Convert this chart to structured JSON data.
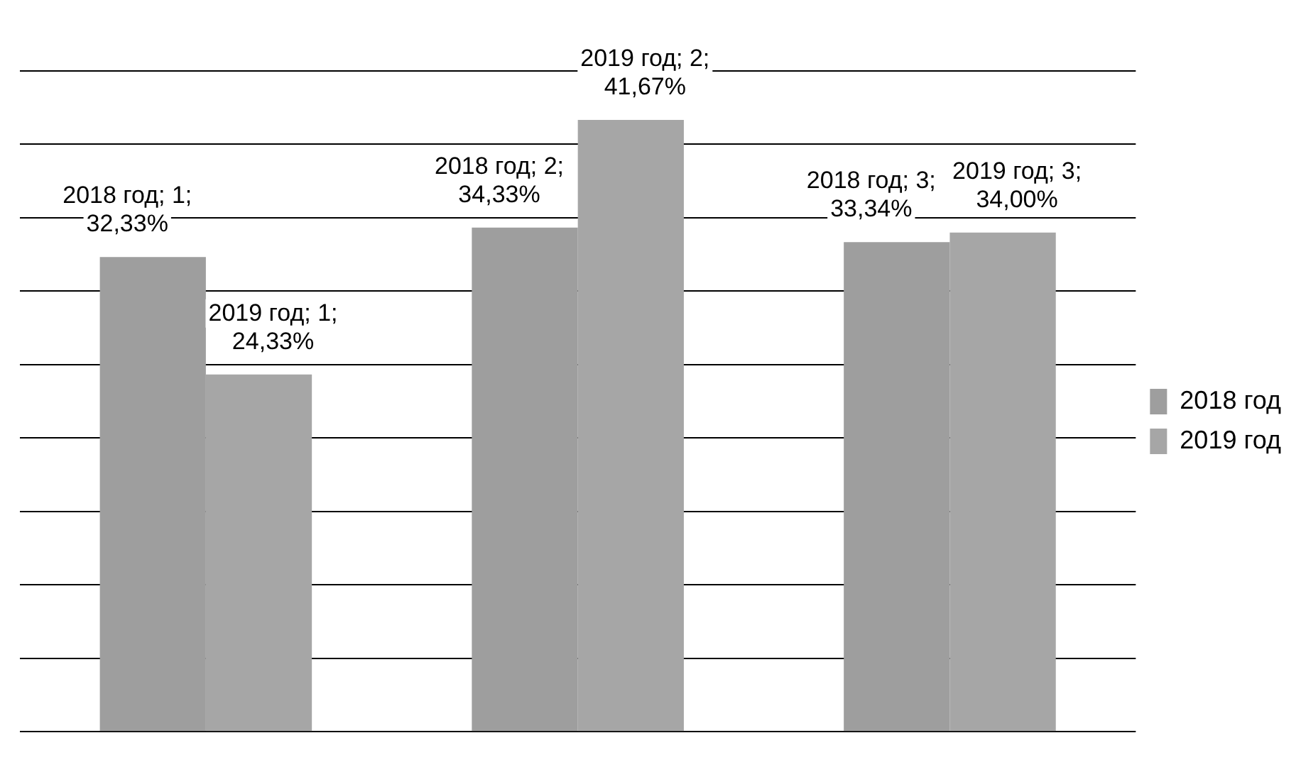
{
  "chart_data": {
    "type": "bar",
    "categories": [
      null,
      null,
      null
    ],
    "series": [
      {
        "name": "2018 год",
        "color": "#9e9e9e",
        "values": [
          32.33,
          34.33,
          33.34
        ],
        "value_labels": [
          "2018 год; 1; 32,33%",
          "2018 год; 2; 34,33%",
          "2018 год; 3; 33,34%"
        ]
      },
      {
        "name": "2019 год",
        "color": "#a6a6a6",
        "values": [
          24.33,
          41.67,
          34.0
        ],
        "value_labels": [
          "2019 год; 1; 24,33%",
          "2019 год; 2; 41,67%",
          "2019 год; 3; 34,00%"
        ]
      }
    ],
    "ylim": [
      0,
      45
    ],
    "yticks": [
      {
        "value": 0,
        "label": null
      },
      {
        "value": 5,
        "label": null
      },
      {
        "value": 10,
        "label": null
      },
      {
        "value": 15,
        "label": null
      },
      {
        "value": 20,
        "label": null
      },
      {
        "value": 25,
        "label": null
      },
      {
        "value": 30,
        "label": null
      },
      {
        "value": 35,
        "label": null
      },
      {
        "value": 40,
        "label": null
      },
      {
        "value": 45,
        "label": null
      }
    ],
    "grid": "y",
    "legend": "right"
  }
}
